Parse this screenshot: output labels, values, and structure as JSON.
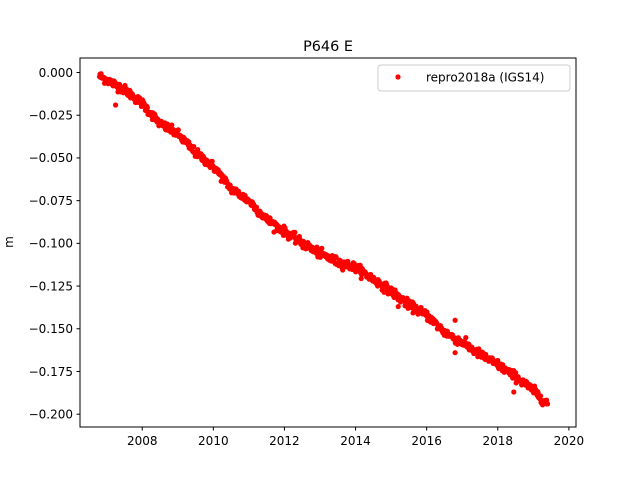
{
  "chart_data": {
    "type": "scatter",
    "title": "P646 E",
    "xlabel": "",
    "ylabel": "m",
    "xlim": [
      2006.25,
      2020.2
    ],
    "ylim": [
      -0.2075,
      0.0085
    ],
    "x_ticks": [
      2008,
      2010,
      2012,
      2014,
      2016,
      2018,
      2020
    ],
    "x_tick_labels": [
      "2008",
      "2010",
      "2012",
      "2014",
      "2016",
      "2018",
      "2020"
    ],
    "y_ticks": [
      0.0,
      -0.025,
      -0.05,
      -0.075,
      -0.1,
      -0.125,
      -0.15,
      -0.175,
      -0.2
    ],
    "y_tick_labels": [
      "0.000",
      "−0.025",
      "−0.050",
      "−0.075",
      "−0.100",
      "−0.125",
      "−0.150",
      "−0.175",
      "−0.200"
    ],
    "grid": false,
    "legend_position": "top-right",
    "series": [
      {
        "name": "repro2018a (IGS14)",
        "color": "#ff0000",
        "marker": "circle",
        "trend_x": [
          2006.8,
          2007.5,
          2008.0,
          2008.5,
          2009.0,
          2009.5,
          2010.0,
          2010.5,
          2011.0,
          2011.5,
          2012.0,
          2012.5,
          2013.0,
          2013.5,
          2014.0,
          2014.5,
          2015.0,
          2015.5,
          2016.0,
          2016.5,
          2017.0,
          2017.5,
          2018.0,
          2018.5,
          2019.0,
          2019.4
        ],
        "trend_y": [
          -0.002,
          -0.01,
          -0.018,
          -0.03,
          -0.036,
          -0.047,
          -0.055,
          -0.068,
          -0.075,
          -0.086,
          -0.093,
          -0.1,
          -0.106,
          -0.111,
          -0.114,
          -0.121,
          -0.128,
          -0.136,
          -0.142,
          -0.152,
          -0.158,
          -0.165,
          -0.171,
          -0.178,
          -0.186,
          -0.194
        ],
        "outliers_x": [
          2007.25,
          2016.8,
          2016.8,
          2018.45,
          2015.2,
          2011.9
        ],
        "outliers_y": [
          -0.019,
          -0.145,
          -0.164,
          -0.187,
          -0.137,
          -0.092
        ]
      }
    ]
  }
}
